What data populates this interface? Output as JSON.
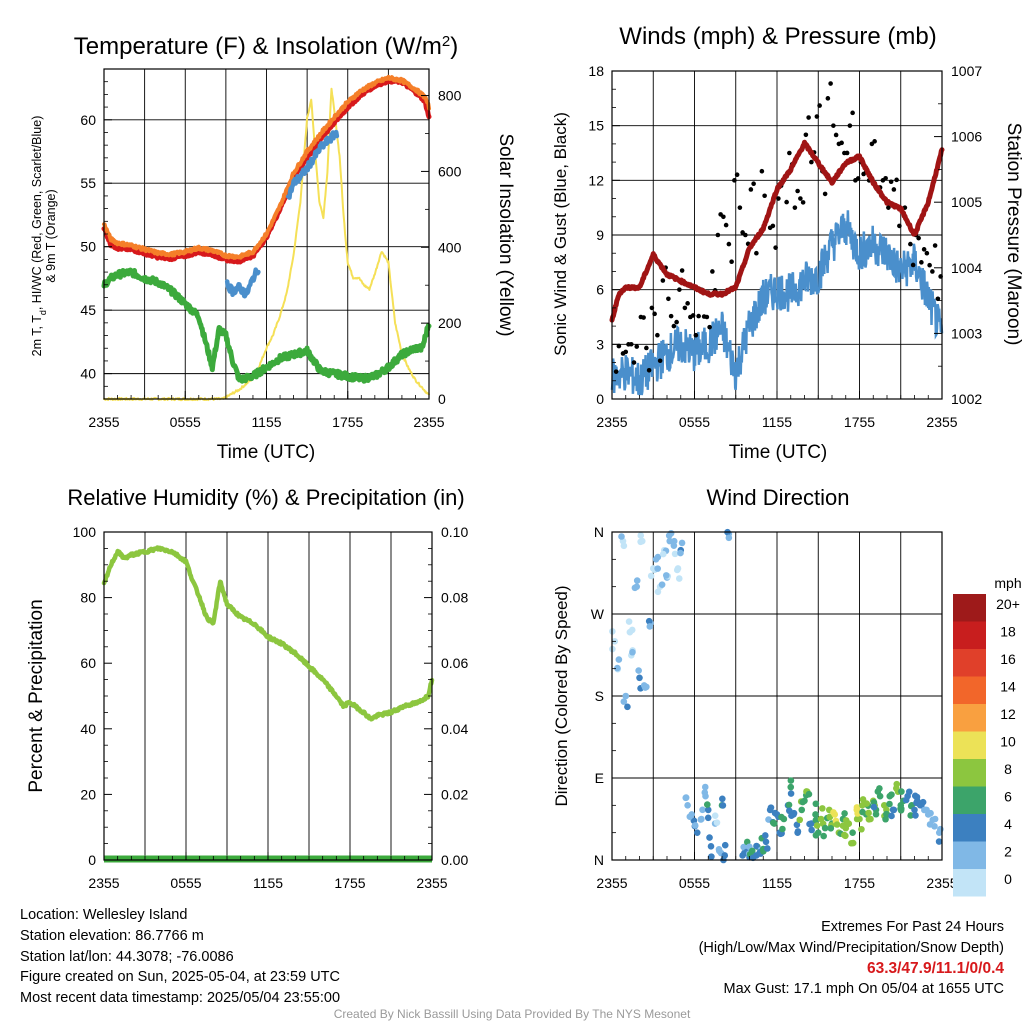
{
  "chart_data": [
    {
      "type": "line",
      "title": "Temperature (F) & Insolation (W/m²)",
      "xlabel": "Time (UTC)",
      "ylabel": "2m T, T_d, HI/WC (Red, Green, Scarlet/Blue) & 9m T (Orange)",
      "ylabel_lines": [
        "2m T, T",
        "d",
        ", HI/WC (Red, Green, Scarlet/Blue)",
        "& 9m T (Orange)"
      ],
      "y2label": "Solar Insolation (Yellow)",
      "x_ticks": [
        "2355",
        "0555",
        "1155",
        "1755",
        "2355"
      ],
      "ylim": [
        38,
        64
      ],
      "y_ticks": [
        "40",
        "45",
        "50",
        "55",
        "60"
      ],
      "y2lim": [
        0,
        870
      ],
      "y2_ticks": [
        "0",
        "200",
        "400",
        "600",
        "800"
      ],
      "grid": true,
      "series": [
        {
          "color": "#d7191c",
          "axis": "left",
          "t": [
            0,
            0.5,
            1,
            2,
            3,
            4,
            5,
            6,
            7,
            8,
            9,
            10,
            11,
            12,
            13,
            14,
            15,
            16,
            17,
            18,
            19,
            20,
            21,
            22,
            23,
            23.7,
            24
          ],
          "y": [
            51.5,
            50.2,
            49.9,
            49.8,
            49.5,
            49.2,
            49.1,
            49.3,
            49.6,
            49.4,
            49.0,
            48.9,
            49.3,
            50.8,
            53.0,
            55.5,
            57.0,
            58.5,
            59.8,
            61.0,
            62.0,
            62.7,
            63.1,
            63.0,
            62.2,
            61.5,
            60.2
          ]
        },
        {
          "color": "#f57f29",
          "axis": "left",
          "t": [
            0,
            0.5,
            1,
            2,
            3,
            4,
            5,
            6,
            7,
            8,
            9,
            10,
            11,
            12,
            13,
            14,
            15,
            16,
            17,
            18,
            19,
            20,
            21,
            22,
            23,
            23.7,
            24
          ],
          "y": [
            51.8,
            50.6,
            50.3,
            50.1,
            49.8,
            49.5,
            49.4,
            49.6,
            49.9,
            49.7,
            49.3,
            49.2,
            49.6,
            51.0,
            53.2,
            55.8,
            57.5,
            58.9,
            60.2,
            61.4,
            62.3,
            62.9,
            63.3,
            63.1,
            62.4,
            61.8,
            61.0
          ]
        },
        {
          "color": "#4a8fcc",
          "axis": "left",
          "t": [
            9.1,
            9.5,
            10,
            10.5,
            11,
            11.5,
            12,
            12.5,
            13,
            13.5,
            14,
            14.5,
            15,
            15.5,
            16,
            16.5,
            17.2
          ],
          "y": [
            47.0,
            46.5,
            46.8,
            46.2,
            47.5,
            48.5,
            49.8,
            51.0,
            52.5,
            53.5,
            55.0,
            55.5,
            56.2,
            57.0,
            57.8,
            58.3,
            59.0
          ]
        },
        {
          "color": "#3caa3c",
          "axis": "left",
          "t": [
            0,
            0.5,
            1,
            2,
            3,
            4,
            5,
            5.5,
            6,
            6.5,
            7,
            7.5,
            8,
            8.5,
            9,
            9.5,
            10,
            11,
            12,
            13,
            14,
            15,
            16,
            17,
            18,
            19,
            20,
            21,
            22,
            23,
            23.5,
            24
          ],
          "y": [
            47.0,
            47.5,
            47.8,
            48.0,
            47.5,
            47.2,
            46.5,
            46.0,
            45.5,
            45.0,
            44.5,
            42.5,
            40.5,
            43.5,
            43.0,
            41.0,
            39.5,
            39.8,
            40.5,
            41.2,
            41.5,
            41.8,
            40.2,
            40.0,
            39.8,
            39.6,
            39.8,
            40.5,
            41.5,
            42.0,
            42.0,
            44.0
          ]
        },
        {
          "color": "#f5e057",
          "axis": "right",
          "t": [
            0,
            8.8,
            9.5,
            10,
            10.5,
            11,
            11.5,
            12,
            12.5,
            13,
            13.5,
            14,
            14.5,
            15,
            15.3,
            15.6,
            15.9,
            16.2,
            16.5,
            16.8,
            17.1,
            17.4,
            17.7,
            18,
            18.4,
            18.8,
            19.2,
            19.6,
            20,
            20.5,
            21,
            21.5,
            22,
            22.5,
            23,
            23.5,
            24
          ],
          "y": [
            0,
            0,
            15,
            25,
            40,
            55,
            90,
            135,
            170,
            220,
            280,
            380,
            520,
            740,
            790,
            650,
            520,
            480,
            600,
            820,
            730,
            640,
            480,
            360,
            320,
            320,
            300,
            290,
            330,
            390,
            360,
            200,
            120,
            80,
            50,
            30,
            10
          ]
        }
      ]
    },
    {
      "type": "line",
      "title": "Winds (mph) & Pressure (mb)",
      "xlabel": "Time (UTC)",
      "ylabel": "Sonic Wind & Gust (Blue, Black)",
      "y2label": "Station Pressure (Maroon)",
      "x_ticks": [
        "2355",
        "0555",
        "1155",
        "1755",
        "2355"
      ],
      "ylim": [
        0,
        18
      ],
      "y_ticks": [
        "0",
        "3",
        "6",
        "9",
        "12",
        "15",
        "18"
      ],
      "y2lim": [
        1002,
        1007
      ],
      "y2_ticks": [
        "1002",
        "1003",
        "1004",
        "1005",
        "1006",
        "1007"
      ],
      "grid": true,
      "series": [
        {
          "color": "#4a8fcc",
          "axis": "left",
          "t": [
            0,
            1,
            2,
            3,
            4,
            5,
            6,
            7,
            8,
            9,
            10,
            11,
            12,
            13,
            14,
            15,
            16,
            17,
            18,
            19,
            20,
            21,
            22,
            23,
            24
          ],
          "y": [
            1.2,
            1.5,
            1.0,
            1.8,
            2.5,
            3.0,
            2.5,
            3.0,
            3.8,
            1.5,
            4.0,
            5.5,
            6.0,
            5.8,
            6.5,
            6.8,
            8.5,
            9.5,
            8.0,
            8.5,
            8.0,
            7.0,
            7.5,
            5.5,
            3.5
          ]
        },
        {
          "color": "#a01414",
          "axis": "right",
          "t": [
            0,
            0.5,
            1,
            2,
            3,
            4,
            5,
            6,
            7,
            8,
            9,
            10,
            11,
            12,
            13,
            14,
            15,
            16,
            17,
            18,
            19,
            20,
            21,
            22,
            23,
            24
          ],
          "y": [
            1003.2,
            1003.6,
            1003.7,
            1003.7,
            1004.2,
            1003.9,
            1003.8,
            1003.7,
            1003.6,
            1003.6,
            1003.7,
            1004.3,
            1004.6,
            1005.2,
            1005.5,
            1005.9,
            1005.6,
            1005.3,
            1005.6,
            1005.7,
            1005.3,
            1005.0,
            1004.9,
            1004.5,
            1005.0,
            1005.8
          ]
        }
      ],
      "gust_points": {
        "t": [
          0.3,
          0.8,
          1.2,
          1.6,
          2.1,
          2.5,
          2.9,
          3.3,
          3.7,
          4.1,
          4.5,
          4.9,
          5.3,
          5.7,
          6.1,
          6.5,
          6.9,
          7.3,
          7.7,
          8.1,
          8.5,
          8.9,
          9.3,
          9.7,
          10.1,
          10.5,
          10.9,
          11.3,
          11.7,
          12.1,
          12.5,
          12.9,
          13.3,
          13.7,
          14.1,
          14.5,
          14.9,
          15.3,
          15.7,
          16.1,
          16.5,
          16.9,
          17.3,
          17.7,
          18.1,
          18.5,
          18.9,
          19.3,
          19.7,
          20.1,
          20.5,
          20.9,
          21.3,
          21.7,
          22.1,
          22.5,
          22.9,
          23.3,
          23.7
        ],
        "y": [
          1.5,
          2.5,
          3.0,
          2.0,
          4.5,
          2.8,
          5.0,
          3.5,
          6.5,
          5.5,
          4.0,
          6.0,
          5.0,
          4.5,
          3.5,
          6.0,
          4.5,
          7.0,
          9.0,
          10.0,
          8.5,
          12.0,
          10.5,
          9.0,
          11.5,
          8.0,
          12.5,
          10.0,
          9.5,
          11.0,
          12.0,
          13.5,
          10.5,
          11.0,
          14.5,
          13.0,
          15.5,
          12.5,
          16.5,
          15.0,
          14.0,
          13.5,
          15.0,
          12.0,
          13.0,
          12.5,
          14.0,
          11.5,
          12.0,
          10.5,
          11.5,
          9.5,
          10.5,
          8.5,
          9.0,
          7.5,
          8.0,
          7.0,
          5.5
        ]
      }
    },
    {
      "type": "line",
      "title": "Relative Humidity (%) & Precipitation (in)",
      "ylabel": "Percent & Precipitation",
      "x_ticks": [
        "2355",
        "0555",
        "1155",
        "1755",
        "2355"
      ],
      "ylim": [
        0,
        100
      ],
      "y_ticks": [
        "0",
        "20",
        "40",
        "60",
        "80",
        "100"
      ],
      "y2lim": [
        0,
        0.1
      ],
      "y2_ticks": [
        "0.00",
        "0.02",
        "0.04",
        "0.06",
        "0.08",
        "0.10"
      ],
      "grid": true,
      "series": [
        {
          "color": "#8cc63f",
          "axis": "left",
          "t": [
            0,
            0.5,
            1,
            1.5,
            2,
            3,
            4,
            5,
            6,
            6.5,
            7,
            7.5,
            8,
            8.5,
            9,
            9.5,
            10,
            11,
            12,
            13,
            14,
            15,
            16,
            17,
            17.5,
            18,
            19,
            19.5,
            20,
            21,
            22,
            23,
            23.7,
            24
          ],
          "y": [
            84,
            90,
            94,
            92,
            93,
            94,
            95,
            94,
            91,
            85,
            80,
            74,
            72,
            85,
            78,
            76,
            74,
            72,
            68,
            66,
            63,
            59,
            55,
            50,
            47,
            48,
            45,
            43,
            44,
            45,
            47,
            48,
            50,
            55
          ]
        },
        {
          "color": "#3caa3c",
          "axis": "left",
          "t": [
            0,
            24
          ],
          "y": [
            0,
            0
          ]
        }
      ]
    },
    {
      "type": "scatter",
      "title": "Wind Direction",
      "ylabel": "Direction (Colored By Speed)",
      "x_ticks": [
        "2355",
        "0555",
        "1155",
        "1755",
        "2355"
      ],
      "y_ticks": [
        "N",
        "E",
        "S",
        "W",
        "N"
      ],
      "ylim": [
        0,
        360
      ],
      "legend": {
        "title": "mph",
        "labels": [
          "20+",
          "18",
          "16",
          "14",
          "12",
          "10",
          "8",
          "6",
          "4",
          "2",
          "0"
        ],
        "colors": [
          "#9e1a1a",
          "#c81e1e",
          "#e0402a",
          "#f2662a",
          "#f9a040",
          "#ece257",
          "#8cc63f",
          "#3ca46a",
          "#3c80c0",
          "#80b8e6",
          "#c2e4f7"
        ]
      },
      "points": {
        "t": [
          0.2,
          0.5,
          0.8,
          1.0,
          1.3,
          1.5,
          1.8,
          2.0,
          2.2,
          2.5,
          2.8,
          3.0,
          3.2,
          3.5,
          3.8,
          4.0,
          4.2,
          4.5,
          4.8,
          5.0,
          5.5,
          5.8,
          6.2,
          6.5,
          6.8,
          7.0,
          7.2,
          7.5,
          7.8,
          8.0,
          8.2,
          8.5,
          9.5,
          9.8,
          10.0,
          10.2,
          10.5,
          10.8,
          11.0,
          11.2,
          11.5,
          11.8,
          12.0,
          12.2,
          12.5,
          12.8,
          13.0,
          13.2,
          13.5,
          13.8,
          14.0,
          14.2,
          14.5,
          14.8,
          15.0,
          15.2,
          15.5,
          15.8,
          16.0,
          16.2,
          16.5,
          16.8,
          17.0,
          17.2,
          17.5,
          17.8,
          18.0,
          18.2,
          18.5,
          18.8,
          19.0,
          19.2,
          19.5,
          19.8,
          20.0,
          20.2,
          20.5,
          20.8,
          21.0,
          21.2,
          21.5,
          21.8,
          22.0,
          22.2,
          22.5,
          22.8,
          23.0,
          23.5,
          23.8
        ],
        "dir": [
          240,
          220,
          350,
          180,
          250,
          230,
          300,
          200,
          350,
          190,
          260,
          320,
          330,
          300,
          340,
          310,
          350,
          345,
          320,
          340,
          60,
          50,
          30,
          45,
          70,
          55,
          15,
          40,
          10,
          60,
          5,
          358,
          5,
          8,
          3,
          10,
          5,
          7,
          12,
          20,
          55,
          40,
          50,
          30,
          45,
          60,
          80,
          50,
          30,
          55,
          65,
          75,
          40,
          50,
          30,
          45,
          35,
          55,
          40,
          50,
          30,
          45,
          35,
          40,
          30,
          55,
          45,
          60,
          50,
          45,
          65,
          55,
          70,
          60,
          50,
          70,
          55,
          75,
          60,
          65,
          70,
          60,
          55,
          65,
          60,
          55,
          50,
          45,
          30
        ],
        "spd": [
          1,
          2,
          1,
          3,
          0,
          1,
          2,
          4,
          1,
          2,
          3,
          1,
          2,
          1,
          1,
          2,
          3,
          2,
          1,
          4,
          2,
          3,
          4,
          2,
          3,
          5,
          4,
          2,
          3,
          6,
          5,
          3,
          4,
          5,
          4,
          6,
          5,
          4,
          6,
          5,
          4,
          6,
          5,
          4,
          7,
          5,
          6,
          4,
          5,
          7,
          6,
          8,
          5,
          6,
          7,
          9,
          6,
          8,
          7,
          10,
          8,
          7,
          9,
          8,
          7,
          10,
          9,
          8,
          7,
          9,
          8,
          6,
          7,
          8,
          6,
          7,
          5,
          8,
          6,
          7,
          5,
          6,
          4,
          5,
          4,
          3,
          3,
          2,
          3
        ]
      }
    }
  ],
  "footer": {
    "location": "Location: Wellesley Island",
    "elevation": "Station elevation: 86.7766 m",
    "latlon": "Station lat/lon: 44.3078; -76.0086",
    "created": "Figure created on Sun, 2025-05-04, at 23:59 UTC",
    "recent": "Most recent data timestamp: 2025/05/04 23:55:00",
    "extremes_title": "Extremes For Past 24 Hours",
    "extremes_sub": "(High/Low/Max Wind/Precipitation/Snow Depth)",
    "extremes_values": "63.3/47.9/11.1/0/0.4",
    "max_gust": "Max Gust: 17.1 mph On 05/04 at 1655 UTC",
    "credit": "Created By Nick Bassill Using Data Provided By The NYS Mesonet"
  }
}
